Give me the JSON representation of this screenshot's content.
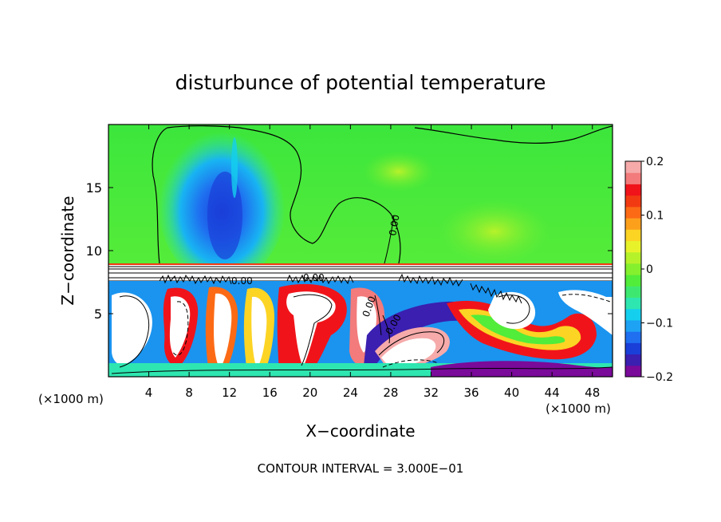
{
  "chart_data": {
    "type": "heatmap",
    "title": "disturbunce of potential temperature",
    "xlabel": "X−coordinate",
    "ylabel": "Z−coordinate",
    "x_unit_left": "(×1000 m)",
    "x_unit_right": "(×1000 m)",
    "xlim": [
      0,
      50
    ],
    "ylim": [
      0,
      20
    ],
    "x_ticks": [
      4,
      8,
      12,
      16,
      20,
      24,
      28,
      32,
      36,
      40,
      44,
      48
    ],
    "y_ticks": [
      5,
      10,
      15
    ],
    "x_tick_labels": [
      "4",
      "8",
      "12",
      "16",
      "20",
      "24",
      "28",
      "32",
      "36",
      "40",
      "44",
      "48"
    ],
    "y_tick_labels": [
      "5",
      "10",
      "15"
    ],
    "colorbar": {
      "range": [
        -0.2,
        0.2
      ],
      "tick_values": [
        0.2,
        0.1,
        0,
        -0.1,
        -0.2
      ],
      "tick_labels": [
        "0.2",
        "0.1",
        "0",
        "−0.1",
        "−0.2"
      ],
      "colors": [
        "#7a0a9a",
        "#3a1fb0",
        "#1a3ed8",
        "#1f6ff0",
        "#1ea2f4",
        "#14d0ee",
        "#2ee6b0",
        "#3ee870",
        "#52ec3a",
        "#84f02e",
        "#b6f22a",
        "#e8f22a",
        "#fcd424",
        "#fca01c",
        "#fc6a16",
        "#f23a12",
        "#f0141a",
        "#f37b7b",
        "#f6aaaa"
      ]
    },
    "contour_labels": [
      "0.00",
      "0.00",
      "0.00",
      "0.00",
      "0.00"
    ],
    "footer": "CONTOUR INTERVAL = 3.000E−01"
  }
}
